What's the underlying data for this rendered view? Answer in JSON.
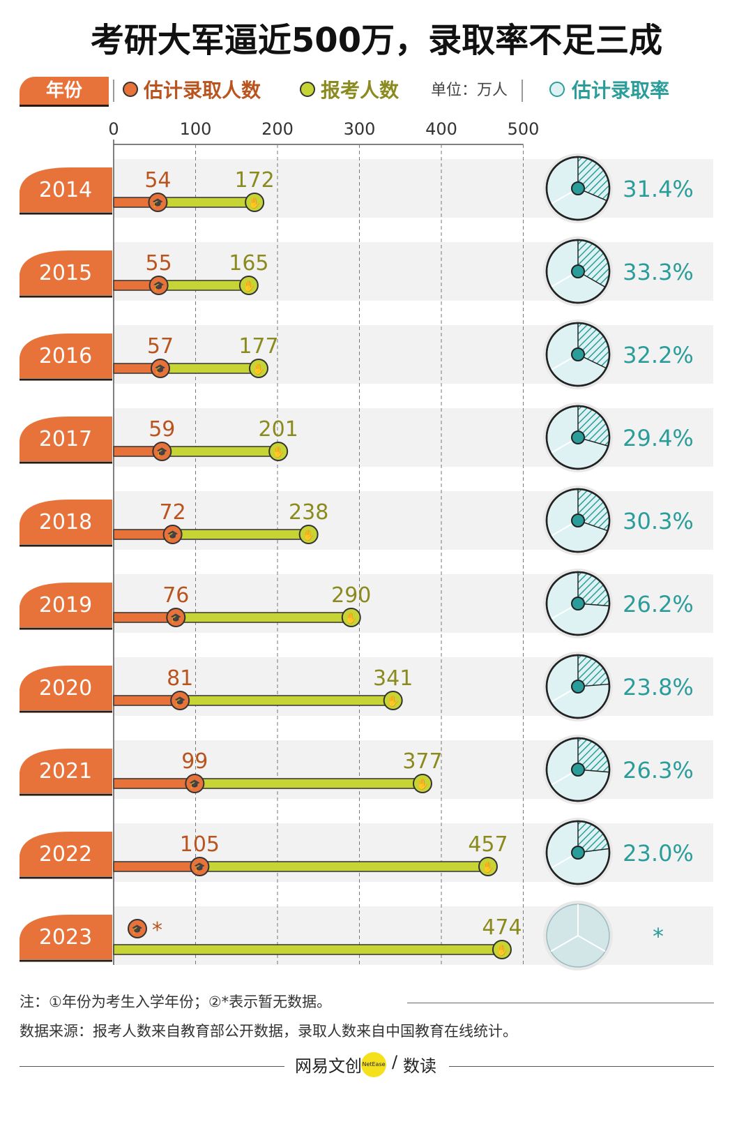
{
  "title": "考研大军逼近500万，录取率不足三成",
  "legend": {
    "year": "年份",
    "admitted": "估计录取人数",
    "applicants": "报考人数",
    "unit": "单位：万人",
    "rate": "估计录取率"
  },
  "colors": {
    "orange": "#e8733a",
    "green": "#c7d435",
    "teal": "#2a9d9a",
    "admit_text": "#b9541f",
    "apply_text": "#8a8a1e",
    "row_bg": "#f2f2f2",
    "pie_bg": "#dff2f3"
  },
  "chart_data": {
    "type": "bar",
    "xlim": [
      0,
      500
    ],
    "xticks": [
      0,
      100,
      200,
      300,
      400,
      500
    ],
    "categories": [
      "2014",
      "2015",
      "2016",
      "2017",
      "2018",
      "2019",
      "2020",
      "2021",
      "2022",
      "2023"
    ],
    "series": [
      {
        "name": "估计录取人数",
        "values": [
          54,
          55,
          57,
          59,
          72,
          76,
          81,
          99,
          105,
          null
        ],
        "labels": [
          "54",
          "55",
          "57",
          "59",
          "72",
          "76",
          "81",
          "99",
          "105",
          "*"
        ]
      },
      {
        "name": "报考人数",
        "values": [
          172,
          165,
          177,
          201,
          238,
          290,
          341,
          377,
          457,
          474
        ],
        "labels": [
          "172",
          "165",
          "177",
          "201",
          "238",
          "290",
          "341",
          "377",
          "457",
          "474"
        ]
      }
    ],
    "rate": {
      "name": "估计录取率",
      "values": [
        31.4,
        33.3,
        32.2,
        29.4,
        30.3,
        26.2,
        23.8,
        26.3,
        23.0,
        null
      ],
      "labels": [
        "31.4%",
        "33.3%",
        "32.2%",
        "29.4%",
        "30.3%",
        "26.2%",
        "23.8%",
        "26.3%",
        "23.0%",
        "*"
      ]
    }
  },
  "footer": {
    "note": "注：①年份为考生入学年份；②*表示暂无数据。",
    "source": "数据来源：报考人数来自教育部公开数据，录取人数来自中国教育在线统计。",
    "brand_left": "网易文创",
    "brand_mid": "NetEase",
    "brand_slash": "/",
    "brand_right": "数读"
  }
}
